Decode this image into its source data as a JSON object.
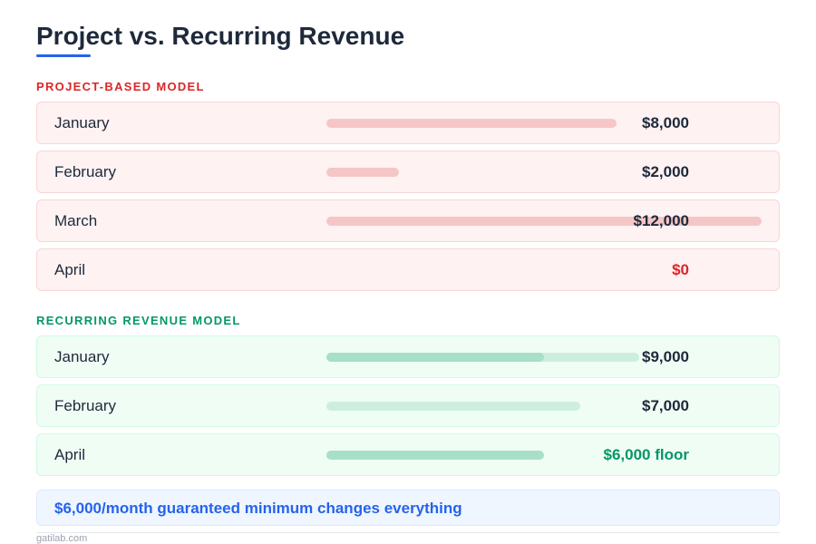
{
  "title": "Project vs. Recurring Revenue",
  "colors": {
    "accent": "#2563eb",
    "project": "#dc2626",
    "recurring": "#059669",
    "project_bar": "#f5c6c6",
    "recurring_bar": "#a7dfc8",
    "recurring_bar_light": "#cdeedf"
  },
  "project": {
    "heading": "PROJECT-BASED MODEL",
    "rows": [
      {
        "month": "January",
        "value": "$8,000",
        "amount": 8000
      },
      {
        "month": "February",
        "value": "$2,000",
        "amount": 2000
      },
      {
        "month": "March",
        "value": "$12,000",
        "amount": 12000
      },
      {
        "month": "April",
        "value": "$0",
        "amount": 0
      }
    ]
  },
  "recurring": {
    "heading": "RECURRING REVENUE MODEL",
    "rows": [
      {
        "month": "January",
        "value": "$9,000",
        "amount": 9000,
        "floor": 6000
      },
      {
        "month": "February",
        "value": "$7,000",
        "amount": 7000
      },
      {
        "month": "April",
        "value": "$6,000 floor",
        "amount": 6000,
        "floor": 6000
      }
    ]
  },
  "callout": "$6,000/month guaranteed minimum changes everything",
  "footer": "gatilab.com"
}
